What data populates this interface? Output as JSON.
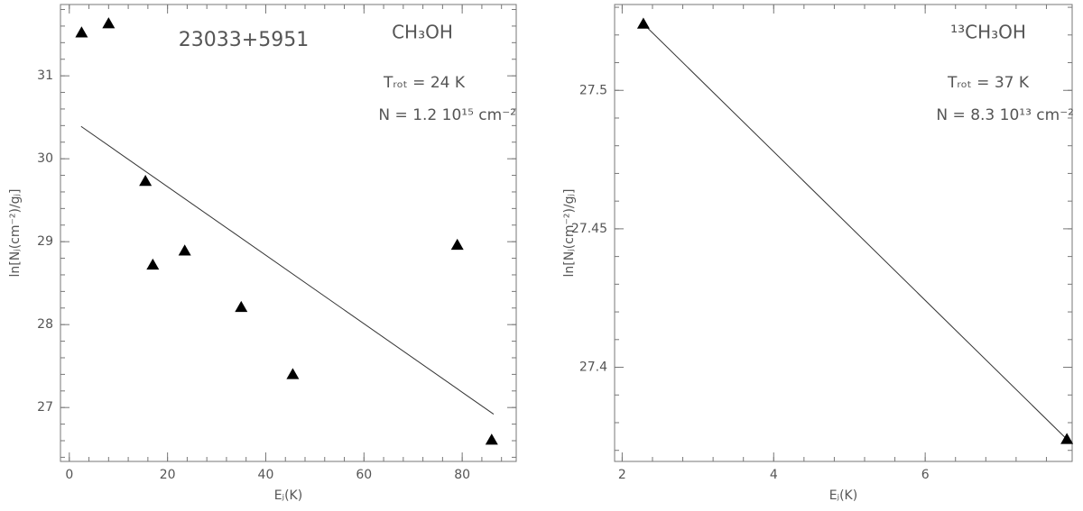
{
  "chart_data": [
    {
      "type": "scatter",
      "marker": "triangle",
      "color": "#000000",
      "line_color": "#333333",
      "x": [
        2.5,
        8,
        15.5,
        17,
        23.5,
        35,
        45.5,
        79,
        86
      ],
      "values": [
        31.52,
        31.63,
        29.73,
        28.72,
        28.89,
        28.21,
        27.4,
        28.96,
        26.61
      ],
      "fit": {
        "x": [
          2.4,
          86.4
        ],
        "y": [
          30.39,
          26.92
        ]
      },
      "xlim": [
        -1.8,
        91.0
      ],
      "ylim": [
        26.35,
        31.86
      ],
      "xticks": [
        0,
        20,
        40,
        60,
        80
      ],
      "yticks": [
        27,
        28,
        29,
        30,
        31
      ],
      "xlabel": "Eⱼ(K)",
      "ylabel": "ln[Nⱼ(cm⁻²)/gⱼ]",
      "annotations": [
        "23033+5951",
        "CH₃OH",
        "Tᵣₒₜ = 24 K",
        "N = 1.2 10¹⁵ cm⁻²"
      ]
    },
    {
      "type": "scatter",
      "marker": "triangle",
      "color": "#000000",
      "line_color": "#333333",
      "x": [
        2.28,
        7.87
      ],
      "values": [
        27.524,
        27.374
      ],
      "fit": {
        "x": [
          2.28,
          7.87
        ],
        "y": [
          27.524,
          27.374
        ]
      },
      "xlim": [
        1.9,
        7.94
      ],
      "ylim": [
        27.366,
        27.531
      ],
      "xticks": [
        2,
        4,
        6
      ],
      "yticks": [
        27.4,
        27.45,
        27.5
      ],
      "xlabel": "Eⱼ(K)",
      "ylabel": "ln[Nⱼ(cm⁻²)/gⱼ]",
      "annotations": [
        "¹³CH₃OH",
        "Tᵣₒₜ = 37 K",
        "N = 8.3 10¹³ cm⁻²"
      ]
    }
  ]
}
